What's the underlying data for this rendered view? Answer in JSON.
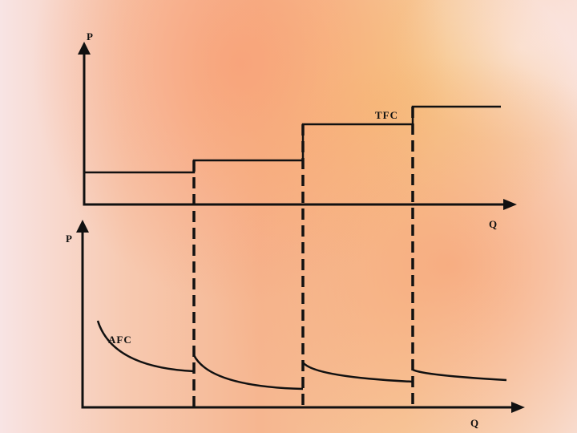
{
  "top_chart": {
    "y_axis_label": "P",
    "x_axis_label": "Q",
    "curve_label": "TFC"
  },
  "bottom_chart": {
    "y_axis_label": "P",
    "x_axis_label": "Q",
    "curve_label": "AFC"
  }
}
